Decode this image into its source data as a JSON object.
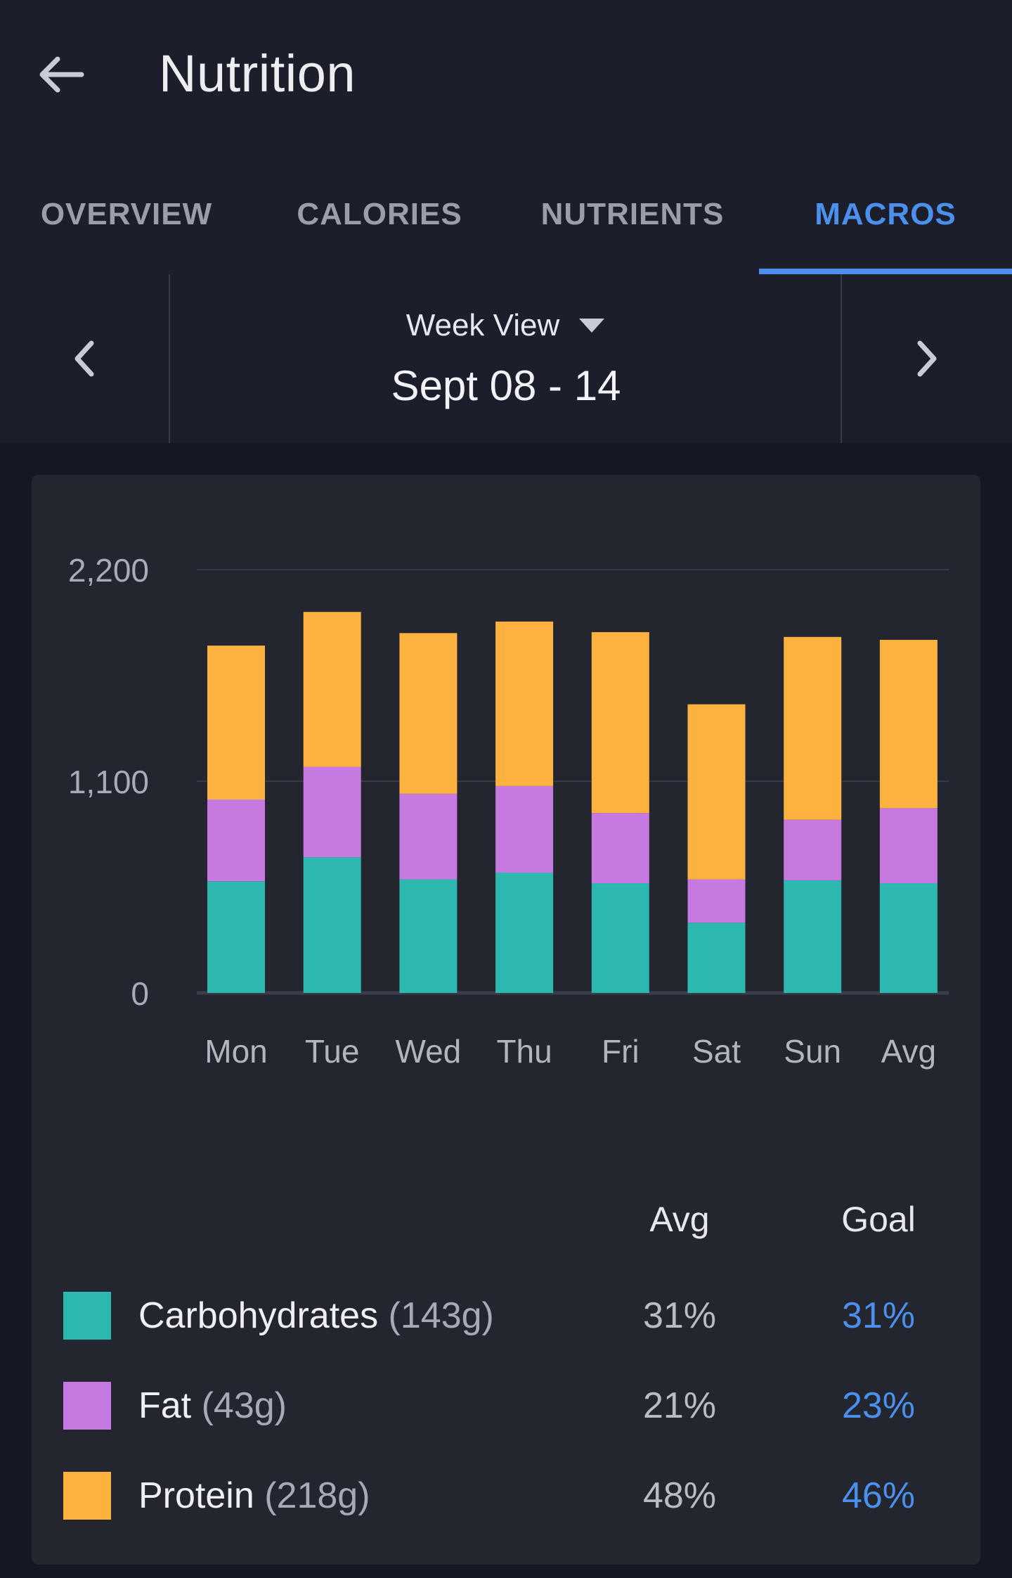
{
  "header": {
    "title": "Nutrition",
    "back_icon": "arrow-left-icon"
  },
  "tabs": [
    {
      "label": "OVERVIEW",
      "active": false
    },
    {
      "label": "CALORIES",
      "active": false
    },
    {
      "label": "NUTRIENTS",
      "active": false
    },
    {
      "label": "MACROS",
      "active": true
    }
  ],
  "date_nav": {
    "view_label": "Week View",
    "range": "Sept 08 - 14",
    "prev_icon": "chevron-left-icon",
    "next_icon": "chevron-right-icon",
    "dropdown_icon": "caret-down-icon"
  },
  "chart_data": {
    "type": "bar",
    "stacked": true,
    "categories": [
      "Mon",
      "Tue",
      "Wed",
      "Thu",
      "Fri",
      "Sat",
      "Sun",
      "Avg"
    ],
    "ylim": [
      0,
      2200
    ],
    "yticks": [
      "2,200",
      "1,100",
      "0"
    ],
    "ytick_values": [
      2200,
      1100,
      0
    ],
    "grid": true,
    "series": [
      {
        "name": "Carbohydrates",
        "color": "#2cb8ae",
        "values": [
          580,
          705,
          590,
          625,
          570,
          365,
          585,
          570
        ]
      },
      {
        "name": "Fat",
        "color": "#c679e0",
        "values": [
          425,
          470,
          445,
          450,
          365,
          225,
          315,
          390
        ]
      },
      {
        "name": "Protein",
        "color": "#fdb240",
        "values": [
          800,
          805,
          835,
          855,
          940,
          910,
          950,
          875
        ]
      }
    ]
  },
  "legend": {
    "avg_header": "Avg",
    "goal_header": "Goal",
    "rows": [
      {
        "name": "Carbohydrates",
        "grams": "(143g)",
        "avg": "31%",
        "goal": "31%",
        "color": "#2cb8ae"
      },
      {
        "name": "Fat",
        "grams": "(43g)",
        "avg": "21%",
        "goal": "23%",
        "color": "#c679e0"
      },
      {
        "name": "Protein",
        "grams": "(218g)",
        "avg": "48%",
        "goal": "46%",
        "color": "#fdb240"
      }
    ]
  }
}
